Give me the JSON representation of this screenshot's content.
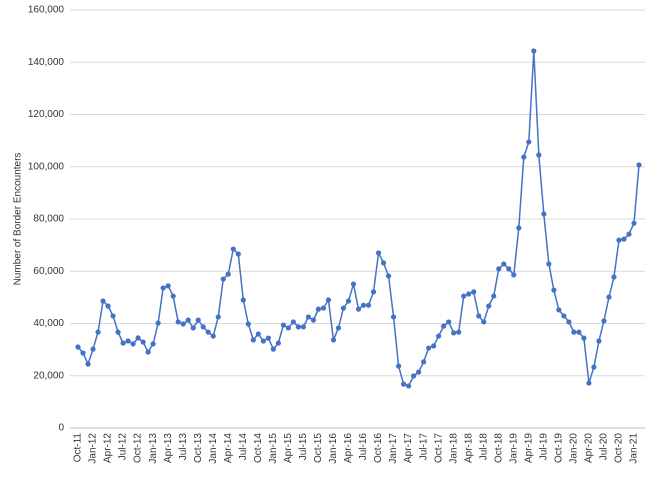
{
  "chart_data": {
    "type": "line",
    "y_label": "Number of Border Encounters",
    "categories": [
      "Oct-11",
      null,
      null,
      "Jan-12",
      null,
      null,
      "Apr-12",
      null,
      null,
      "Jul-12",
      null,
      null,
      "Oct-12",
      null,
      null,
      "Jan-13",
      null,
      null,
      "Apr-13",
      null,
      null,
      "Jul-13",
      null,
      null,
      "Oct-13",
      null,
      null,
      "Jan-14",
      null,
      null,
      "Apr-14",
      null,
      null,
      "Jul-14",
      null,
      null,
      "Oct-14",
      null,
      null,
      "Jan-15",
      null,
      null,
      "Apr-15",
      null,
      null,
      "Jul-15",
      null,
      null,
      "Oct-15",
      null,
      null,
      "Jan-16",
      null,
      null,
      "Apr-16",
      null,
      null,
      "Jul-16",
      null,
      null,
      "Oct-16",
      null,
      null,
      "Jan-17",
      null,
      null,
      "Apr-17",
      null,
      null,
      "Jul-17",
      null,
      null,
      "Oct-17",
      null,
      null,
      "Jan-18",
      null,
      null,
      "Apr-18",
      null,
      null,
      "Jul-18",
      null,
      null,
      "Oct-18",
      null,
      null,
      "Jan-19",
      null,
      null,
      "Apr-19",
      null,
      null,
      "Jul-19",
      null,
      null,
      "Oct-19",
      null,
      null,
      "Jan-20",
      null,
      null,
      "Apr-20",
      null,
      null,
      "Jul-20",
      null,
      null,
      "Oct-20",
      null,
      null,
      "Jan-21",
      null
    ],
    "values": [
      31000,
      28700,
      24500,
      30200,
      36700,
      48600,
      46700,
      42900,
      36700,
      32500,
      33300,
      32200,
      34500,
      32900,
      29100,
      32200,
      40200,
      53600,
      54400,
      50500,
      40600,
      39800,
      41300,
      38300,
      41300,
      38700,
      36700,
      35200,
      42500,
      57000,
      58900,
      68500,
      66600,
      49000,
      39800,
      33700,
      36000,
      33300,
      34400,
      30200,
      32500,
      39400,
      38300,
      40600,
      38700,
      38700,
      42500,
      41300,
      45500,
      45900,
      49000,
      33700,
      38300,
      45900,
      48600,
      55100,
      45500,
      47000,
      47000,
      52100,
      67000,
      63200,
      58200,
      42500,
      23700,
      16800,
      16100,
      19900,
      21400,
      25300,
      30600,
      31400,
      35200,
      39000,
      40600,
      36400,
      36700,
      50500,
      51300,
      52100,
      42900,
      40600,
      46700,
      50500,
      60900,
      62800,
      60900,
      58600,
      76600,
      103700,
      109500,
      144300,
      104500,
      81900,
      62800,
      52800,
      45200,
      42900,
      40600,
      36700,
      36700,
      34400,
      17200,
      23300,
      33300,
      41000,
      50100,
      57800,
      71900,
      72300,
      74200,
      78400,
      100700
    ],
    "color": "#4472c4",
    "ylim": [
      0,
      160000
    ],
    "yticks": [
      0,
      {
        "value": 20000,
        "label": "20,000"
      },
      {
        "value": 40000,
        "label": "40,000"
      },
      {
        "value": 60000,
        "label": "60,000"
      },
      {
        "value": 80000,
        "label": "80,000"
      },
      {
        "value": 100000,
        "label": "100,000"
      },
      {
        "value": 120000,
        "label": "120,000"
      },
      {
        "value": 140000,
        "label": "140,000"
      },
      {
        "value": 160000,
        "label": "160,000"
      }
    ],
    "grid": true
  }
}
